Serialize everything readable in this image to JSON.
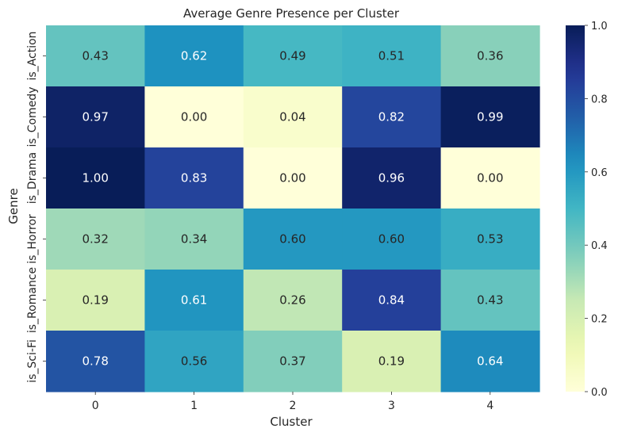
{
  "chart_data": {
    "type": "heatmap",
    "title": "Average Genre Presence per Cluster",
    "xlabel": "Cluster",
    "ylabel": "Genre",
    "x_categories": [
      "0",
      "1",
      "2",
      "3",
      "4"
    ],
    "y_categories": [
      "is_Action",
      "is_Comedy",
      "is_Drama",
      "is_Horror",
      "is_Romance",
      "is_Sci-Fi"
    ],
    "values": [
      [
        0.43,
        0.62,
        0.49,
        0.51,
        0.36
      ],
      [
        0.97,
        0.0,
        0.04,
        0.82,
        0.99
      ],
      [
        1.0,
        0.83,
        0.0,
        0.96,
        0.0
      ],
      [
        0.32,
        0.34,
        0.6,
        0.6,
        0.53
      ],
      [
        0.19,
        0.61,
        0.26,
        0.84,
        0.43
      ],
      [
        0.78,
        0.56,
        0.37,
        0.19,
        0.64
      ]
    ],
    "value_format": "0.00",
    "colormap": "YlGnBu",
    "colorbar": {
      "range": [
        0,
        1
      ],
      "ticks": [
        "0.0",
        "0.2",
        "0.4",
        "0.6",
        "0.8",
        "1.0"
      ],
      "placement": "right"
    },
    "colors": {
      "text_dark": "#262626",
      "text_light": "#ffffff"
    }
  }
}
